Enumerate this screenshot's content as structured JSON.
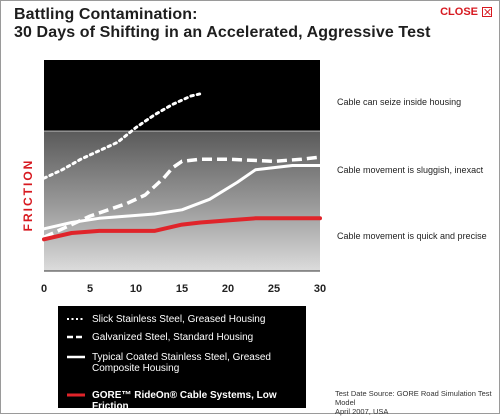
{
  "window": {
    "title_line1": "Battling Contamination:",
    "title_line2": "30 Days of Shifting in an Accelerated, Aggressive Test",
    "close_label": "CLOSE"
  },
  "chart_data": {
    "type": "line",
    "title": "Battling Contamination: 30 Days of Shifting in an Accelerated, Aggressive Test",
    "xlabel": "",
    "ylabel": "FRICTION",
    "xlim": [
      0,
      30
    ],
    "xticks": [
      "0",
      "5",
      "10",
      "15",
      "20",
      "25",
      "30"
    ],
    "grid": false,
    "legend_placement": "bottom-left",
    "regions": [
      {
        "label": "Cable can seize inside housing",
        "color": "#000000"
      },
      {
        "label": "Cable movement is sluggish, inexact",
        "color": "#8a8a8a"
      },
      {
        "label": "Cable movement is quick and precise",
        "color": "#d8d8d8"
      }
    ],
    "series": [
      {
        "name": "Slick Stainless Steel, Greased Housing",
        "style": "dotted",
        "color": "#ffffff",
        "x": [
          0,
          2,
          4,
          6,
          8,
          10,
          12,
          14,
          15,
          16,
          17
        ],
        "y": [
          0.44,
          0.48,
          0.53,
          0.57,
          0.61,
          0.68,
          0.74,
          0.79,
          0.81,
          0.83,
          0.84
        ]
      },
      {
        "name": "Galvanized Steel, Standard Housing",
        "style": "dashed",
        "color": "#ffffff",
        "x": [
          0,
          3,
          5,
          7,
          9,
          11,
          13,
          14,
          15,
          17,
          20,
          25,
          28,
          30
        ],
        "y": [
          0.16,
          0.22,
          0.26,
          0.29,
          0.32,
          0.36,
          0.44,
          0.49,
          0.52,
          0.53,
          0.53,
          0.52,
          0.53,
          0.54
        ]
      },
      {
        "name": "Typical Coated Stainless Steel, Greased Composite Housing",
        "style": "solid",
        "color": "#ffffff",
        "x": [
          0,
          3,
          6,
          9,
          12,
          15,
          18,
          21,
          23,
          25,
          27,
          30
        ],
        "y": [
          0.2,
          0.23,
          0.25,
          0.26,
          0.27,
          0.29,
          0.34,
          0.42,
          0.48,
          0.49,
          0.5,
          0.5
        ]
      },
      {
        "name": "GORE™ RideOn® Cable Systems, Low Friction",
        "style": "solid",
        "color": "#e0242a",
        "x": [
          0,
          3,
          6,
          9,
          12,
          13,
          15,
          17,
          20,
          23,
          26,
          30
        ],
        "y": [
          0.15,
          0.18,
          0.19,
          0.19,
          0.19,
          0.2,
          0.22,
          0.23,
          0.24,
          0.25,
          0.25,
          0.25
        ]
      }
    ]
  },
  "legend": {
    "items": [
      {
        "line1": "Slick Stainless Steel, Greased Housing",
        "line2": ""
      },
      {
        "line1": "Galvanized Steel, Standard Housing",
        "line2": ""
      },
      {
        "line1": "Typical Coated Stainless Steel, Greased",
        "line2": "Composite Housing"
      },
      {
        "line1": "GORE™ RideOn® Cable Systems, Low Friction",
        "line2": ""
      }
    ]
  },
  "source": {
    "line1": "Test Date Source: GORE Road Simulation Test Model",
    "line2": "April 2007, USA"
  }
}
